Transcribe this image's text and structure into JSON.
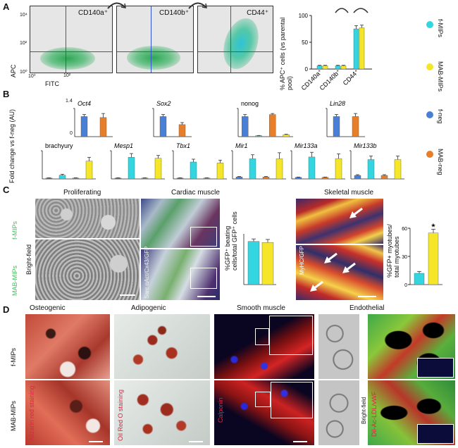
{
  "panels": {
    "a": "A",
    "b": "B",
    "c": "C",
    "d": "D"
  },
  "colors": {
    "f_MIPs": "#33d6e0",
    "MAB_MIPs": "#f5e62a",
    "f_neg": "#4a7fd8",
    "MAB_neg": "#e67e2a"
  },
  "panel_a": {
    "y_axis": "APC",
    "x_axis": "FITC",
    "flow_plots": [
      {
        "label": "CD140a⁺"
      },
      {
        "label": "CD140b⁺"
      },
      {
        "label": "CD44⁺"
      }
    ],
    "tick_labels": [
      "10⁰",
      "10²",
      "10⁴",
      "10⁰",
      "10²"
    ]
  },
  "legend": [
    {
      "label": "f-MIPs",
      "color": "#33d6e0"
    },
    {
      "label": "MAB-MIPs",
      "color": "#f5e62a"
    },
    {
      "label": "f-neg",
      "color": "#4a7fd8"
    },
    {
      "label": "MAB-neg",
      "color": "#e67e2a"
    }
  ],
  "panel_b": {
    "y_axis": "Fold change vs f-neg (AU)",
    "scale_tick": "1.4",
    "scale_tick_0": "0"
  },
  "panel_c": {
    "headers": [
      "Proliferating",
      "Cardiac muscle",
      "Skeletal muscle"
    ],
    "row_labels": [
      "f-MIPs",
      "MAB-MIPs"
    ],
    "bright_field": "Bright-field",
    "cardiac_stain": "Sarc αAct/Cx43/GFP",
    "skeletal_stain": "MyHC/GFP",
    "cardiac_ylabel": "%GFP⁺ beating cells/total GFP⁺ cells",
    "skeletal_ylabel": "%GFP+ myotubes/ total myotubes",
    "star": "★"
  },
  "panel_d": {
    "headers": [
      "Osteogenic",
      "Adipogenic",
      "Smooth muscle",
      "Endothelial"
    ],
    "row_labels": [
      "f-MIPs",
      "MAB-MIPs"
    ],
    "stains": [
      "Alizarin red staining",
      "Oil Red O staining",
      "Calponin",
      "Bright-field",
      "Dil-Ac-LDL/vWF"
    ]
  },
  "chart_data": [
    {
      "type": "bar",
      "title": "",
      "ylabel": "% APC⁺ cells (vs parental pool)",
      "categories": [
        "CD140a⁺",
        "CD140b⁺",
        "CD44⁺"
      ],
      "series": [
        {
          "name": "f-MIPs",
          "values": [
            6,
            6,
            75
          ],
          "errors": [
            1,
            1,
            6
          ]
        },
        {
          "name": "MAB-MIPs",
          "values": [
            6,
            6,
            77
          ],
          "errors": [
            1,
            1,
            5
          ]
        }
      ],
      "ylim": [
        0,
        100
      ],
      "yticks": [
        0,
        50,
        100
      ]
    },
    {
      "type": "bar",
      "title": "Oct4",
      "categories": [
        "f-neg",
        "MAB-neg"
      ],
      "series": [
        {
          "name": "value",
          "values": [
            1.0,
            0.95
          ],
          "errors": [
            0.1,
            0.2
          ]
        }
      ],
      "ylim": [
        0,
        1.4
      ]
    },
    {
      "type": "bar",
      "title": "Sox2",
      "categories": [
        "f-neg",
        "MAB-neg"
      ],
      "series": [
        {
          "name": "value",
          "values": [
            1.0,
            0.6
          ],
          "errors": [
            0.1,
            0.1
          ]
        }
      ],
      "ylim": [
        0,
        1.4
      ]
    },
    {
      "type": "bar",
      "title": "nonog",
      "categories": [
        "f-neg",
        "f-MIPs",
        "MAB-neg",
        "MAB-MIPs"
      ],
      "series": [
        {
          "name": "value",
          "values": [
            1.0,
            0.05,
            1.1,
            0.1
          ],
          "errors": [
            0.1,
            0.01,
            0.05,
            0.02
          ]
        }
      ],
      "ylim": [
        0,
        1.4
      ]
    },
    {
      "type": "bar",
      "title": "Lin28",
      "categories": [
        "f-neg",
        "MAB-neg"
      ],
      "series": [
        {
          "name": "value",
          "values": [
            1.0,
            1.0
          ],
          "errors": [
            0.1,
            0.15
          ]
        }
      ],
      "ylim": [
        0,
        1.4
      ]
    },
    {
      "type": "bar",
      "title": "brachyury",
      "categories": [
        "f-neg",
        "f-MIPs",
        "MAB-neg",
        "MAB-MIPs"
      ],
      "series": [
        {
          "name": "value",
          "values": [
            1,
            4,
            1,
            19
          ],
          "errors": [
            0.2,
            1,
            0.2,
            4
          ]
        }
      ],
      "ylim": [
        0,
        30
      ]
    },
    {
      "type": "bar",
      "title": "Mesp1",
      "categories": [
        "f-neg",
        "f-MIPs",
        "MAB-neg",
        "MAB-MIPs"
      ],
      "series": [
        {
          "name": "value",
          "values": [
            1,
            23,
            1,
            22
          ],
          "errors": [
            0.2,
            4,
            0.2,
            3
          ]
        }
      ],
      "ylim": [
        0,
        30
      ]
    },
    {
      "type": "bar",
      "title": "Tbx1",
      "categories": [
        "f-neg",
        "f-MIPs",
        "MAB-neg",
        "MAB-MIPs"
      ],
      "series": [
        {
          "name": "value",
          "values": [
            1,
            18,
            1,
            17
          ],
          "errors": [
            0.2,
            3,
            0.2,
            3
          ]
        }
      ],
      "ylim": [
        0,
        30
      ]
    },
    {
      "type": "bar",
      "title": "Mir1",
      "categories": [
        "f-neg",
        "f-MIPs",
        "MAB-neg",
        "MAB-MIPs"
      ],
      "series": [
        {
          "name": "value",
          "values": [
            1,
            10,
            1,
            10
          ],
          "errors": [
            0.2,
            2,
            0.2,
            3
          ]
        }
      ],
      "ylim": [
        0,
        14
      ]
    },
    {
      "type": "bar",
      "title": "Mir133a",
      "categories": [
        "f-neg",
        "f-MIPs",
        "MAB-neg",
        "MAB-MIPs"
      ],
      "series": [
        {
          "name": "value",
          "values": [
            1,
            14,
            1,
            13
          ],
          "errors": [
            0.2,
            3,
            0.2,
            3
          ]
        }
      ],
      "ylim": [
        0,
        18
      ]
    },
    {
      "type": "bar",
      "title": "Mir133b",
      "categories": [
        "f-neg",
        "f-MIPs",
        "MAB-neg",
        "MAB-MIPs"
      ],
      "series": [
        {
          "name": "value",
          "values": [
            1,
            5.5,
            1,
            5.5
          ],
          "errors": [
            0.2,
            1,
            0.2,
            1
          ]
        }
      ],
      "ylim": [
        0,
        8
      ]
    },
    {
      "type": "bar",
      "title": "",
      "ylabel": "%GFP⁺ beating cells/total GFP⁺ cells",
      "categories": [
        "f-MIPs",
        "MAB-MIPs"
      ],
      "series": [
        {
          "name": "value",
          "values": [
            85,
            83
          ],
          "errors": [
            5,
            6
          ]
        }
      ],
      "ylim": [
        0,
        100
      ]
    },
    {
      "type": "bar",
      "title": "",
      "ylabel": "%GFP+ myotubes/ total myotubes",
      "categories": [
        "f-MIPs",
        "MAB-MIPs"
      ],
      "series": [
        {
          "name": "value",
          "values": [
            12,
            55
          ],
          "errors": [
            2,
            4
          ]
        }
      ],
      "ylim": [
        0,
        60
      ],
      "yticks": [
        0,
        30,
        60
      ],
      "annotation": "★"
    }
  ]
}
